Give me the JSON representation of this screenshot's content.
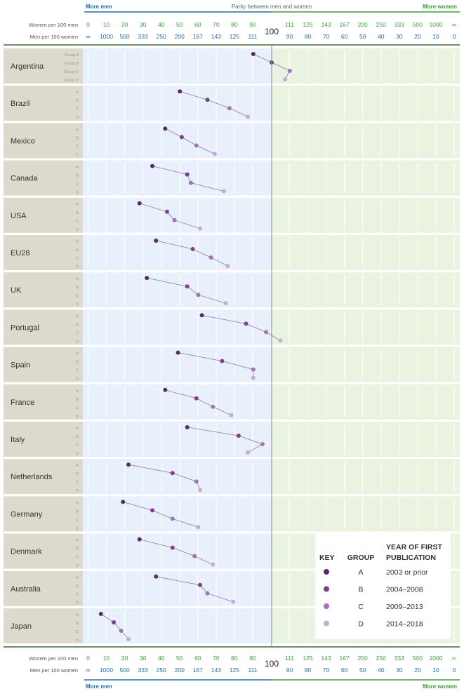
{
  "header": {
    "more_men": "More men",
    "parity": "Parity between men and women",
    "more_women": "More women",
    "women_label": "Women per 100 men",
    "men_label": "Men per 100 women",
    "parity_value": "100"
  },
  "footer": {
    "more_men": "More men",
    "more_women": "More women",
    "women_label": "Women per 100 men",
    "men_label": "Men per 100 women",
    "parity_value": "100"
  },
  "colors": {
    "more_men": "#1f6fb3",
    "more_women": "#3f9d3a",
    "men_panel": "#e8f1fb",
    "women_panel": "#e9f3df",
    "label_panel": "#ddd9cd",
    "connector": "#8a7f95",
    "group_a": "#5b2a6e",
    "group_b": "#7b3f93",
    "group_c": "#a274b6",
    "group_d": "#c9a9d5"
  },
  "key": {
    "key_title": "KEY",
    "group_title": "GROUP",
    "year_title_line1": "YEAR OF FIRST",
    "year_title_line2": "PUBLICATION",
    "rows": [
      {
        "group": "A",
        "years": "2003 or prior"
      },
      {
        "group": "B",
        "years": "2004–2008"
      },
      {
        "group": "C",
        "years": "2009–2013"
      },
      {
        "group": "D",
        "years": "2014–2018"
      }
    ]
  },
  "chart_data": {
    "type": "scatter",
    "title": "",
    "xlabel": "Women per 100 men",
    "x_axis_mid": 100,
    "women_ticks": [
      "0",
      "10",
      "20",
      "30",
      "40",
      "50",
      "60",
      "70",
      "80",
      "90",
      "111",
      "125",
      "143",
      "167",
      "200",
      "250",
      "333",
      "500",
      "1000",
      "∞"
    ],
    "men_ticks": [
      "∞",
      "1000",
      "500",
      "333",
      "250",
      "200",
      "167",
      "143",
      "125",
      "111",
      "90",
      "80",
      "70",
      "60",
      "50",
      "40",
      "30",
      "20",
      "10",
      "0"
    ],
    "groups": [
      "Group A",
      "Group B",
      "Group C",
      "Group D"
    ],
    "series_groups": [
      "A",
      "B",
      "C",
      "D"
    ],
    "countries": [
      {
        "name": "Argentina",
        "values": [
          90,
          100,
          111,
          108
        ]
      },
      {
        "name": "Brazil",
        "values": [
          50,
          65,
          77,
          87
        ]
      },
      {
        "name": "Mexico",
        "values": [
          42,
          51,
          59,
          69
        ]
      },
      {
        "name": "Canada",
        "values": [
          35,
          54,
          56,
          74
        ]
      },
      {
        "name": "USA",
        "values": [
          28,
          43,
          47,
          61
        ]
      },
      {
        "name": "EU28",
        "values": [
          37,
          57,
          67,
          76
        ]
      },
      {
        "name": "UK",
        "values": [
          32,
          54,
          60,
          75
        ]
      },
      {
        "name": "Portugal",
        "values": [
          62,
          86,
          97,
          105
        ]
      },
      {
        "name": "Spain",
        "values": [
          49,
          73,
          90,
          90
        ]
      },
      {
        "name": "France",
        "values": [
          42,
          59,
          68,
          78
        ]
      },
      {
        "name": "Italy",
        "values": [
          54,
          82,
          95,
          87
        ]
      },
      {
        "name": "Netherlands",
        "values": [
          22,
          46,
          59,
          61
        ]
      },
      {
        "name": "Germany",
        "values": [
          19,
          35,
          46,
          60
        ]
      },
      {
        "name": "Denmark",
        "values": [
          28,
          46,
          58,
          68
        ]
      },
      {
        "name": "Australia",
        "values": [
          37,
          61,
          65,
          79
        ]
      },
      {
        "name": "Japan",
        "values": [
          7,
          14,
          18,
          22
        ]
      }
    ]
  }
}
